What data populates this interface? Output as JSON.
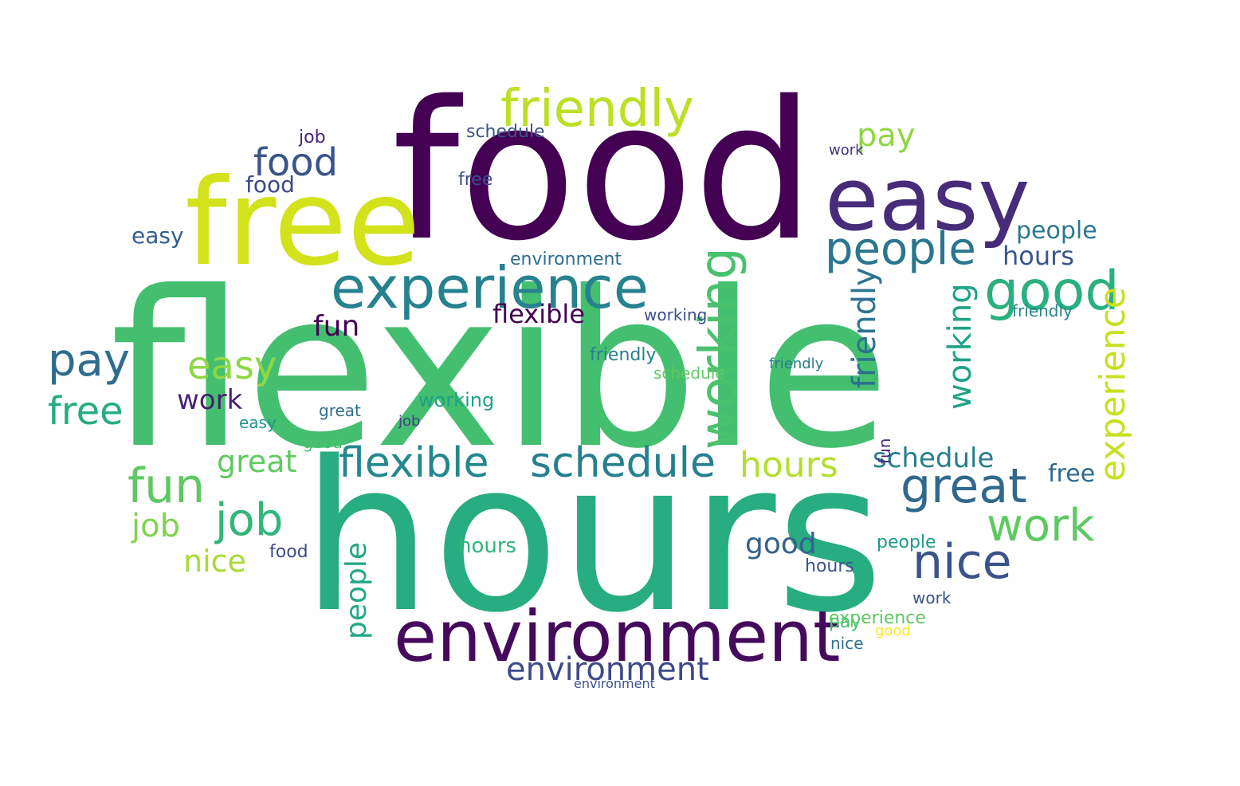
{
  "words": [
    {
      "t": "flexible",
      "c": "#44bf70"
    },
    {
      "t": "hours",
      "c": "#27ad81"
    },
    {
      "t": "food",
      "c": "#440154"
    },
    {
      "t": "free",
      "c": "#d2e21b"
    },
    {
      "t": "easy",
      "c": "#472c7a"
    },
    {
      "t": "environment",
      "c": "#450a5c"
    },
    {
      "t": "experience",
      "c": "#26828e"
    },
    {
      "t": "friendly",
      "c": "#bddf26"
    },
    {
      "t": "people",
      "c": "#2a768e"
    },
    {
      "t": "good",
      "c": "#2ab07f"
    },
    {
      "t": "working",
      "c": "#4ac16d"
    },
    {
      "t": "great",
      "c": "#31688e"
    },
    {
      "t": "nice",
      "c": "#3b528b"
    },
    {
      "t": "work",
      "c": "#5ec962"
    },
    {
      "t": "schedule",
      "c": "#27808e"
    },
    {
      "t": "flexible",
      "c": "#23888e"
    },
    {
      "t": "hours",
      "c": "#b5de2b"
    },
    {
      "t": "environment",
      "c": "#3e4a89"
    },
    {
      "t": "pay",
      "c": "#2f6c8e"
    },
    {
      "t": "job",
      "c": "#32b67a"
    },
    {
      "t": "free",
      "c": "#25ac82"
    },
    {
      "t": "fun",
      "c": "#5ec962"
    },
    {
      "t": "easy",
      "c": "#8fd744"
    },
    {
      "t": "food",
      "c": "#3a548c"
    },
    {
      "t": "experience",
      "c": "#c8e020"
    },
    {
      "t": "working",
      "c": "#20a386"
    },
    {
      "t": "friendly",
      "c": "#2c738e"
    },
    {
      "t": "pay",
      "c": "#8fd744"
    },
    {
      "t": "hours",
      "c": "#38588c"
    },
    {
      "t": "people",
      "c": "#22a785"
    },
    {
      "t": "good",
      "c": "#34618d"
    },
    {
      "t": "great",
      "c": "#60ca60"
    },
    {
      "t": "nice",
      "c": "#a8db34"
    },
    {
      "t": "job",
      "c": "#7fd34e"
    },
    {
      "t": "schedule",
      "c": "#277f8e"
    },
    {
      "t": "people",
      "c": "#2a788e"
    },
    {
      "t": "work",
      "c": "#481f70"
    },
    {
      "t": "fun",
      "c": "#440154"
    },
    {
      "t": "flexible",
      "c": "#440154"
    },
    {
      "t": "food",
      "c": "#3e4989"
    },
    {
      "t": "free",
      "c": "#2f6b8e"
    },
    {
      "t": "working",
      "c": "#1fa088"
    },
    {
      "t": "friendly",
      "c": "#277e8e"
    },
    {
      "t": "environment",
      "c": "#2e6d8e"
    },
    {
      "t": "fun",
      "c": "#472a7a"
    },
    {
      "t": "work",
      "c": "#46337f"
    },
    {
      "t": "working",
      "c": "#3c4f8a"
    },
    {
      "t": "schedule",
      "c": "#3b528b"
    },
    {
      "t": "easy",
      "c": "#355e8d"
    },
    {
      "t": "great",
      "c": "#2e6e8e"
    },
    {
      "t": "job",
      "c": "#482475"
    },
    {
      "t": "people",
      "c": "#1f9a8a"
    },
    {
      "t": "pay",
      "c": "#44bf70"
    },
    {
      "t": "food",
      "c": "#3e4c8a"
    },
    {
      "t": "friendly",
      "c": "#25848e"
    },
    {
      "t": "hours",
      "c": "#31b57b"
    },
    {
      "t": "nice",
      "c": "#2e6f8e"
    },
    {
      "t": "good",
      "c": "#4ac16d"
    },
    {
      "t": "schedule",
      "c": "#5ec962"
    },
    {
      "t": "experience",
      "c": "#5ec962"
    },
    {
      "t": "friendly",
      "c": "#287c8e"
    },
    {
      "t": "environment",
      "c": "#39558c"
    },
    {
      "t": "easy",
      "c": "#1f958b"
    },
    {
      "t": "work",
      "c": "#3b528b"
    },
    {
      "t": "good",
      "c": "#fde725"
    },
    {
      "t": "free",
      "c": "#3d4d8a"
    },
    {
      "t": "hours",
      "c": "#3a548c"
    },
    {
      "t": "job",
      "c": "#433e85"
    }
  ]
}
